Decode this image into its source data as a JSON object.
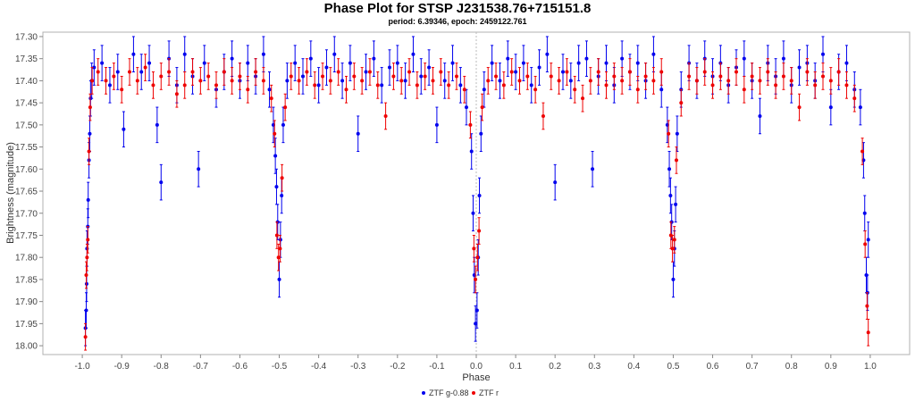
{
  "chart_data": {
    "type": "scatter",
    "title": "Phase Plot for STSP J231538.76+715151.8",
    "subtitle": "period: 6.39346, epoch: 2459122.761",
    "xlabel": "Phase",
    "ylabel": "Brightness (magnitude)",
    "xlim": [
      -1.1,
      1.1
    ],
    "ylim": [
      18.02,
      17.29
    ],
    "y_inverted": true,
    "x_ticks": [
      "-1.0",
      "-0.9",
      "-0.8",
      "-0.7",
      "-0.6",
      "-0.5",
      "-0.4",
      "-0.3",
      "-0.2",
      "-0.1",
      "0.0",
      "0.1",
      "0.2",
      "0.3",
      "0.4",
      "0.5",
      "0.6",
      "0.7",
      "0.8",
      "0.9",
      "1.0"
    ],
    "y_ticks": [
      "17.30",
      "17.35",
      "17.40",
      "17.45",
      "17.50",
      "17.55",
      "17.60",
      "17.65",
      "17.70",
      "17.75",
      "17.80",
      "17.85",
      "17.90",
      "17.95",
      "18.00"
    ],
    "grid": false,
    "vertical_marker_x": 0.0,
    "legend_position": "bottom-center",
    "series": [
      {
        "name": "ZTF g-0.88",
        "color": "#0000ee",
        "error_bar": 0.04,
        "points": [
          [
            -0.99,
            17.92
          ],
          [
            -0.992,
            17.96
          ],
          [
            -0.989,
            17.86
          ],
          [
            -0.988,
            17.78
          ],
          [
            -0.986,
            17.73
          ],
          [
            -0.985,
            17.67
          ],
          [
            -0.983,
            17.58
          ],
          [
            -0.981,
            17.52
          ],
          [
            -0.979,
            17.44
          ],
          [
            -0.976,
            17.4
          ],
          [
            -0.97,
            17.37
          ],
          [
            -0.95,
            17.36
          ],
          [
            -0.93,
            17.41
          ],
          [
            -0.91,
            17.38
          ],
          [
            -0.895,
            17.51
          ],
          [
            -0.87,
            17.34
          ],
          [
            -0.85,
            17.38
          ],
          [
            -0.83,
            17.36
          ],
          [
            -0.81,
            17.5
          ],
          [
            -0.8,
            17.63
          ],
          [
            -0.78,
            17.35
          ],
          [
            -0.76,
            17.41
          ],
          [
            -0.74,
            17.34
          ],
          [
            -0.72,
            17.39
          ],
          [
            -0.705,
            17.6
          ],
          [
            -0.69,
            17.36
          ],
          [
            -0.66,
            17.42
          ],
          [
            -0.64,
            17.38
          ],
          [
            -0.62,
            17.35
          ],
          [
            -0.6,
            17.4
          ],
          [
            -0.58,
            17.36
          ],
          [
            -0.56,
            17.39
          ],
          [
            -0.54,
            17.34
          ],
          [
            -0.525,
            17.42
          ],
          [
            -0.515,
            17.5
          ],
          [
            -0.51,
            17.57
          ],
          [
            -0.507,
            17.64
          ],
          [
            -0.504,
            17.72
          ],
          [
            -0.5,
            17.85
          ],
          [
            -0.497,
            17.76
          ],
          [
            -0.494,
            17.66
          ],
          [
            -0.49,
            17.5
          ],
          [
            -0.48,
            17.4
          ],
          [
            -0.46,
            17.36
          ],
          [
            -0.44,
            17.39
          ],
          [
            -0.42,
            17.35
          ],
          [
            -0.4,
            17.41
          ],
          [
            -0.38,
            17.37
          ],
          [
            -0.36,
            17.34
          ],
          [
            -0.34,
            17.4
          ],
          [
            -0.32,
            17.36
          ],
          [
            -0.3,
            17.52
          ],
          [
            -0.28,
            17.38
          ],
          [
            -0.26,
            17.35
          ],
          [
            -0.24,
            17.41
          ],
          [
            -0.22,
            17.37
          ],
          [
            -0.2,
            17.36
          ],
          [
            -0.18,
            17.4
          ],
          [
            -0.16,
            17.34
          ],
          [
            -0.14,
            17.39
          ],
          [
            -0.12,
            17.37
          ],
          [
            -0.1,
            17.5
          ],
          [
            -0.08,
            17.4
          ],
          [
            -0.06,
            17.36
          ],
          [
            -0.04,
            17.41
          ],
          [
            -0.025,
            17.46
          ],
          [
            -0.012,
            17.56
          ],
          [
            -0.008,
            17.7
          ],
          [
            -0.005,
            17.84
          ],
          [
            -0.002,
            17.95
          ],
          [
            0.002,
            17.92
          ],
          [
            0.005,
            17.8
          ],
          [
            0.008,
            17.66
          ],
          [
            0.012,
            17.52
          ],
          [
            0.02,
            17.42
          ],
          [
            0.04,
            17.36
          ],
          [
            0.06,
            17.4
          ],
          [
            0.08,
            17.35
          ],
          [
            0.1,
            17.38
          ],
          [
            0.12,
            17.36
          ],
          [
            0.14,
            17.41
          ],
          [
            0.16,
            17.37
          ],
          [
            0.18,
            17.34
          ],
          [
            0.2,
            17.63
          ],
          [
            0.22,
            17.38
          ],
          [
            0.24,
            17.4
          ],
          [
            0.26,
            17.36
          ],
          [
            0.28,
            17.35
          ],
          [
            0.295,
            17.6
          ],
          [
            0.31,
            17.39
          ],
          [
            0.33,
            17.36
          ],
          [
            0.35,
            17.41
          ],
          [
            0.37,
            17.35
          ],
          [
            0.39,
            17.38
          ],
          [
            0.41,
            17.36
          ],
          [
            0.43,
            17.4
          ],
          [
            0.45,
            17.34
          ],
          [
            0.47,
            17.42
          ],
          [
            0.485,
            17.5
          ],
          [
            0.49,
            17.6
          ],
          [
            0.493,
            17.66
          ],
          [
            0.496,
            17.72
          ],
          [
            0.5,
            17.85
          ],
          [
            0.503,
            17.78
          ],
          [
            0.506,
            17.68
          ],
          [
            0.51,
            17.52
          ],
          [
            0.52,
            17.42
          ],
          [
            0.54,
            17.36
          ],
          [
            0.56,
            17.4
          ],
          [
            0.58,
            17.35
          ],
          [
            0.6,
            17.39
          ],
          [
            0.62,
            17.36
          ],
          [
            0.64,
            17.41
          ],
          [
            0.66,
            17.37
          ],
          [
            0.68,
            17.35
          ],
          [
            0.7,
            17.4
          ],
          [
            0.72,
            17.48
          ],
          [
            0.74,
            17.36
          ],
          [
            0.76,
            17.39
          ],
          [
            0.78,
            17.35
          ],
          [
            0.8,
            17.41
          ],
          [
            0.82,
            17.37
          ],
          [
            0.84,
            17.36
          ],
          [
            0.86,
            17.4
          ],
          [
            0.88,
            17.34
          ],
          [
            0.9,
            17.46
          ],
          [
            0.92,
            17.38
          ],
          [
            0.94,
            17.36
          ],
          [
            0.96,
            17.42
          ],
          [
            0.975,
            17.46
          ],
          [
            0.983,
            17.58
          ],
          [
            0.986,
            17.7
          ],
          [
            0.99,
            17.84
          ],
          [
            0.993,
            17.88
          ],
          [
            0.995,
            17.76
          ]
        ]
      },
      {
        "name": "ZTF r",
        "color": "#ee0000",
        "error_bar": 0.03,
        "points": [
          [
            -0.992,
            17.98
          ],
          [
            -0.99,
            17.84
          ],
          [
            -0.988,
            17.8
          ],
          [
            -0.986,
            17.76
          ],
          [
            -0.983,
            17.56
          ],
          [
            -0.98,
            17.46
          ],
          [
            -0.975,
            17.4
          ],
          [
            -0.96,
            17.38
          ],
          [
            -0.94,
            17.4
          ],
          [
            -0.92,
            17.39
          ],
          [
            -0.9,
            17.42
          ],
          [
            -0.88,
            17.38
          ],
          [
            -0.86,
            17.4
          ],
          [
            -0.84,
            17.37
          ],
          [
            -0.82,
            17.41
          ],
          [
            -0.8,
            17.39
          ],
          [
            -0.78,
            17.38
          ],
          [
            -0.76,
            17.43
          ],
          [
            -0.74,
            17.41
          ],
          [
            -0.72,
            17.38
          ],
          [
            -0.7,
            17.4
          ],
          [
            -0.68,
            17.39
          ],
          [
            -0.66,
            17.41
          ],
          [
            -0.64,
            17.38
          ],
          [
            -0.62,
            17.4
          ],
          [
            -0.6,
            17.39
          ],
          [
            -0.58,
            17.42
          ],
          [
            -0.56,
            17.38
          ],
          [
            -0.54,
            17.4
          ],
          [
            -0.52,
            17.44
          ],
          [
            -0.512,
            17.52
          ],
          [
            -0.506,
            17.75
          ],
          [
            -0.502,
            17.8
          ],
          [
            -0.498,
            17.78
          ],
          [
            -0.493,
            17.62
          ],
          [
            -0.485,
            17.46
          ],
          [
            -0.47,
            17.39
          ],
          [
            -0.45,
            17.4
          ],
          [
            -0.43,
            17.38
          ],
          [
            -0.41,
            17.41
          ],
          [
            -0.39,
            17.39
          ],
          [
            -0.37,
            17.4
          ],
          [
            -0.35,
            17.38
          ],
          [
            -0.33,
            17.42
          ],
          [
            -0.31,
            17.39
          ],
          [
            -0.29,
            17.4
          ],
          [
            -0.27,
            17.38
          ],
          [
            -0.25,
            17.41
          ],
          [
            -0.23,
            17.48
          ],
          [
            -0.21,
            17.39
          ],
          [
            -0.19,
            17.4
          ],
          [
            -0.17,
            17.38
          ],
          [
            -0.15,
            17.41
          ],
          [
            -0.13,
            17.39
          ],
          [
            -0.11,
            17.4
          ],
          [
            -0.09,
            17.38
          ],
          [
            -0.07,
            17.41
          ],
          [
            -0.05,
            17.39
          ],
          [
            -0.03,
            17.42
          ],
          [
            -0.015,
            17.5
          ],
          [
            -0.006,
            17.78
          ],
          [
            -0.002,
            17.85
          ],
          [
            0.003,
            17.8
          ],
          [
            0.007,
            17.74
          ],
          [
            0.015,
            17.46
          ],
          [
            0.03,
            17.4
          ],
          [
            0.05,
            17.39
          ],
          [
            0.07,
            17.41
          ],
          [
            0.09,
            17.38
          ],
          [
            0.11,
            17.4
          ],
          [
            0.13,
            17.39
          ],
          [
            0.15,
            17.42
          ],
          [
            0.17,
            17.48
          ],
          [
            0.19,
            17.39
          ],
          [
            0.21,
            17.4
          ],
          [
            0.23,
            17.38
          ],
          [
            0.25,
            17.42
          ],
          [
            0.27,
            17.44
          ],
          [
            0.29,
            17.4
          ],
          [
            0.31,
            17.38
          ],
          [
            0.33,
            17.41
          ],
          [
            0.35,
            17.39
          ],
          [
            0.37,
            17.4
          ],
          [
            0.39,
            17.38
          ],
          [
            0.41,
            17.42
          ],
          [
            0.43,
            17.39
          ],
          [
            0.45,
            17.4
          ],
          [
            0.47,
            17.38
          ],
          [
            0.488,
            17.52
          ],
          [
            0.494,
            17.75
          ],
          [
            0.498,
            17.78
          ],
          [
            0.503,
            17.76
          ],
          [
            0.508,
            17.58
          ],
          [
            0.52,
            17.45
          ],
          [
            0.54,
            17.39
          ],
          [
            0.56,
            17.4
          ],
          [
            0.58,
            17.38
          ],
          [
            0.6,
            17.41
          ],
          [
            0.62,
            17.39
          ],
          [
            0.64,
            17.4
          ],
          [
            0.66,
            17.38
          ],
          [
            0.68,
            17.42
          ],
          [
            0.7,
            17.39
          ],
          [
            0.72,
            17.4
          ],
          [
            0.74,
            17.38
          ],
          [
            0.76,
            17.41
          ],
          [
            0.78,
            17.39
          ],
          [
            0.8,
            17.4
          ],
          [
            0.82,
            17.46
          ],
          [
            0.84,
            17.38
          ],
          [
            0.86,
            17.41
          ],
          [
            0.88,
            17.39
          ],
          [
            0.9,
            17.4
          ],
          [
            0.92,
            17.38
          ],
          [
            0.94,
            17.41
          ],
          [
            0.96,
            17.44
          ],
          [
            0.98,
            17.56
          ],
          [
            0.987,
            17.77
          ],
          [
            0.992,
            17.91
          ],
          [
            0.995,
            17.97
          ]
        ]
      }
    ]
  }
}
